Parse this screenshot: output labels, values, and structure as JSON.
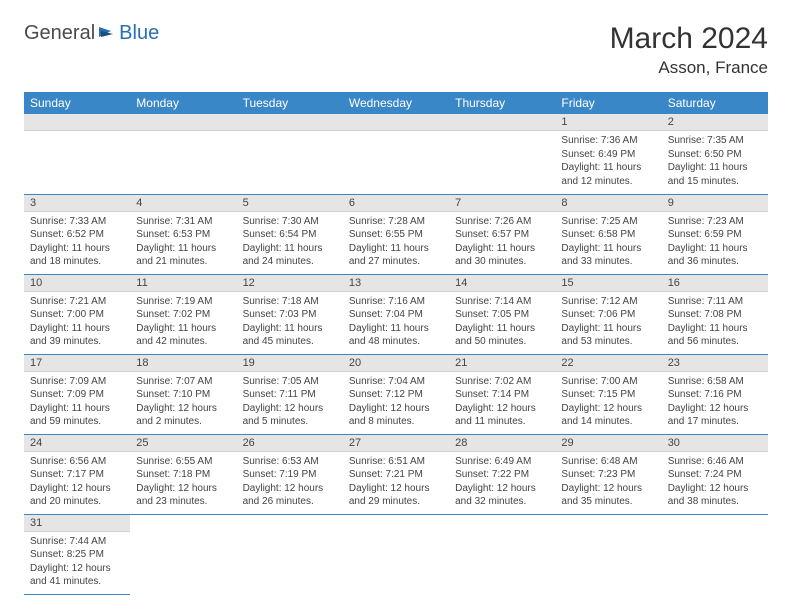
{
  "logo": {
    "general": "General",
    "blue": "Blue"
  },
  "title": "March 2024",
  "location": "Asson, France",
  "colors": {
    "header_bg": "#3a87c8",
    "header_text": "#ffffff",
    "daynum_bg": "#e5e5e5",
    "border": "#3a87c8",
    "logo_blue": "#2a6fb0",
    "text": "#444"
  },
  "day_headers": [
    "Sunday",
    "Monday",
    "Tuesday",
    "Wednesday",
    "Thursday",
    "Friday",
    "Saturday"
  ],
  "weeks": [
    [
      null,
      null,
      null,
      null,
      null,
      {
        "n": "1",
        "sr": "Sunrise: 7:36 AM",
        "ss": "Sunset: 6:49 PM",
        "dl": "Daylight: 11 hours and 12 minutes."
      },
      {
        "n": "2",
        "sr": "Sunrise: 7:35 AM",
        "ss": "Sunset: 6:50 PM",
        "dl": "Daylight: 11 hours and 15 minutes."
      }
    ],
    [
      {
        "n": "3",
        "sr": "Sunrise: 7:33 AM",
        "ss": "Sunset: 6:52 PM",
        "dl": "Daylight: 11 hours and 18 minutes."
      },
      {
        "n": "4",
        "sr": "Sunrise: 7:31 AM",
        "ss": "Sunset: 6:53 PM",
        "dl": "Daylight: 11 hours and 21 minutes."
      },
      {
        "n": "5",
        "sr": "Sunrise: 7:30 AM",
        "ss": "Sunset: 6:54 PM",
        "dl": "Daylight: 11 hours and 24 minutes."
      },
      {
        "n": "6",
        "sr": "Sunrise: 7:28 AM",
        "ss": "Sunset: 6:55 PM",
        "dl": "Daylight: 11 hours and 27 minutes."
      },
      {
        "n": "7",
        "sr": "Sunrise: 7:26 AM",
        "ss": "Sunset: 6:57 PM",
        "dl": "Daylight: 11 hours and 30 minutes."
      },
      {
        "n": "8",
        "sr": "Sunrise: 7:25 AM",
        "ss": "Sunset: 6:58 PM",
        "dl": "Daylight: 11 hours and 33 minutes."
      },
      {
        "n": "9",
        "sr": "Sunrise: 7:23 AM",
        "ss": "Sunset: 6:59 PM",
        "dl": "Daylight: 11 hours and 36 minutes."
      }
    ],
    [
      {
        "n": "10",
        "sr": "Sunrise: 7:21 AM",
        "ss": "Sunset: 7:00 PM",
        "dl": "Daylight: 11 hours and 39 minutes."
      },
      {
        "n": "11",
        "sr": "Sunrise: 7:19 AM",
        "ss": "Sunset: 7:02 PM",
        "dl": "Daylight: 11 hours and 42 minutes."
      },
      {
        "n": "12",
        "sr": "Sunrise: 7:18 AM",
        "ss": "Sunset: 7:03 PM",
        "dl": "Daylight: 11 hours and 45 minutes."
      },
      {
        "n": "13",
        "sr": "Sunrise: 7:16 AM",
        "ss": "Sunset: 7:04 PM",
        "dl": "Daylight: 11 hours and 48 minutes."
      },
      {
        "n": "14",
        "sr": "Sunrise: 7:14 AM",
        "ss": "Sunset: 7:05 PM",
        "dl": "Daylight: 11 hours and 50 minutes."
      },
      {
        "n": "15",
        "sr": "Sunrise: 7:12 AM",
        "ss": "Sunset: 7:06 PM",
        "dl": "Daylight: 11 hours and 53 minutes."
      },
      {
        "n": "16",
        "sr": "Sunrise: 7:11 AM",
        "ss": "Sunset: 7:08 PM",
        "dl": "Daylight: 11 hours and 56 minutes."
      }
    ],
    [
      {
        "n": "17",
        "sr": "Sunrise: 7:09 AM",
        "ss": "Sunset: 7:09 PM",
        "dl": "Daylight: 11 hours and 59 minutes."
      },
      {
        "n": "18",
        "sr": "Sunrise: 7:07 AM",
        "ss": "Sunset: 7:10 PM",
        "dl": "Daylight: 12 hours and 2 minutes."
      },
      {
        "n": "19",
        "sr": "Sunrise: 7:05 AM",
        "ss": "Sunset: 7:11 PM",
        "dl": "Daylight: 12 hours and 5 minutes."
      },
      {
        "n": "20",
        "sr": "Sunrise: 7:04 AM",
        "ss": "Sunset: 7:12 PM",
        "dl": "Daylight: 12 hours and 8 minutes."
      },
      {
        "n": "21",
        "sr": "Sunrise: 7:02 AM",
        "ss": "Sunset: 7:14 PM",
        "dl": "Daylight: 12 hours and 11 minutes."
      },
      {
        "n": "22",
        "sr": "Sunrise: 7:00 AM",
        "ss": "Sunset: 7:15 PM",
        "dl": "Daylight: 12 hours and 14 minutes."
      },
      {
        "n": "23",
        "sr": "Sunrise: 6:58 AM",
        "ss": "Sunset: 7:16 PM",
        "dl": "Daylight: 12 hours and 17 minutes."
      }
    ],
    [
      {
        "n": "24",
        "sr": "Sunrise: 6:56 AM",
        "ss": "Sunset: 7:17 PM",
        "dl": "Daylight: 12 hours and 20 minutes."
      },
      {
        "n": "25",
        "sr": "Sunrise: 6:55 AM",
        "ss": "Sunset: 7:18 PM",
        "dl": "Daylight: 12 hours and 23 minutes."
      },
      {
        "n": "26",
        "sr": "Sunrise: 6:53 AM",
        "ss": "Sunset: 7:19 PM",
        "dl": "Daylight: 12 hours and 26 minutes."
      },
      {
        "n": "27",
        "sr": "Sunrise: 6:51 AM",
        "ss": "Sunset: 7:21 PM",
        "dl": "Daylight: 12 hours and 29 minutes."
      },
      {
        "n": "28",
        "sr": "Sunrise: 6:49 AM",
        "ss": "Sunset: 7:22 PM",
        "dl": "Daylight: 12 hours and 32 minutes."
      },
      {
        "n": "29",
        "sr": "Sunrise: 6:48 AM",
        "ss": "Sunset: 7:23 PM",
        "dl": "Daylight: 12 hours and 35 minutes."
      },
      {
        "n": "30",
        "sr": "Sunrise: 6:46 AM",
        "ss": "Sunset: 7:24 PM",
        "dl": "Daylight: 12 hours and 38 minutes."
      }
    ],
    [
      {
        "n": "31",
        "sr": "Sunrise: 7:44 AM",
        "ss": "Sunset: 8:25 PM",
        "dl": "Daylight: 12 hours and 41 minutes."
      },
      null,
      null,
      null,
      null,
      null,
      null
    ]
  ]
}
